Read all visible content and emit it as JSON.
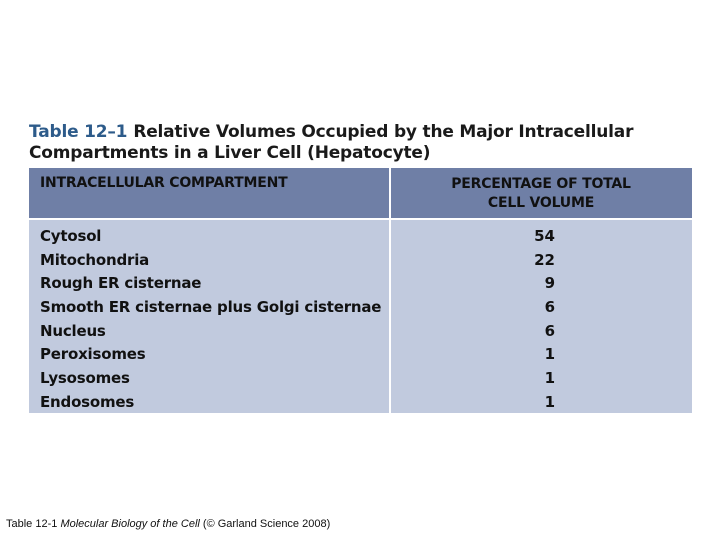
{
  "table": {
    "number": "Table 12–1",
    "title_line1": "Relative Volumes Occupied by the Major Intracellular",
    "title_line2": "Compartments in a Liver Cell (Hepatocyte)",
    "header_left": "INTRACELLULAR COMPARTMENT",
    "header_right_line1": "PERCENTAGE OF TOTAL",
    "header_right_line2": "CELL VOLUME",
    "rows": [
      {
        "name": "Cytosol",
        "value": "54"
      },
      {
        "name": "Mitochondria",
        "value": "22"
      },
      {
        "name": "Rough ER cisternae",
        "value": "9"
      },
      {
        "name": "Smooth ER cisternae plus Golgi cisternae",
        "value": "6"
      },
      {
        "name": "Nucleus",
        "value": "6"
      },
      {
        "name": "Peroxisomes",
        "value": "1"
      },
      {
        "name": "Lysosomes",
        "value": "1"
      },
      {
        "name": "Endosomes",
        "value": "1"
      }
    ]
  },
  "caption": {
    "prefix": "Table 12-1  ",
    "book": "Molecular Biology of the Cell",
    "suffix": " (© Garland Science 2008)"
  },
  "colors": {
    "header_bg": "#6f7fa6",
    "body_bg": "#c1cade",
    "title_number": "#2d5b8a"
  }
}
